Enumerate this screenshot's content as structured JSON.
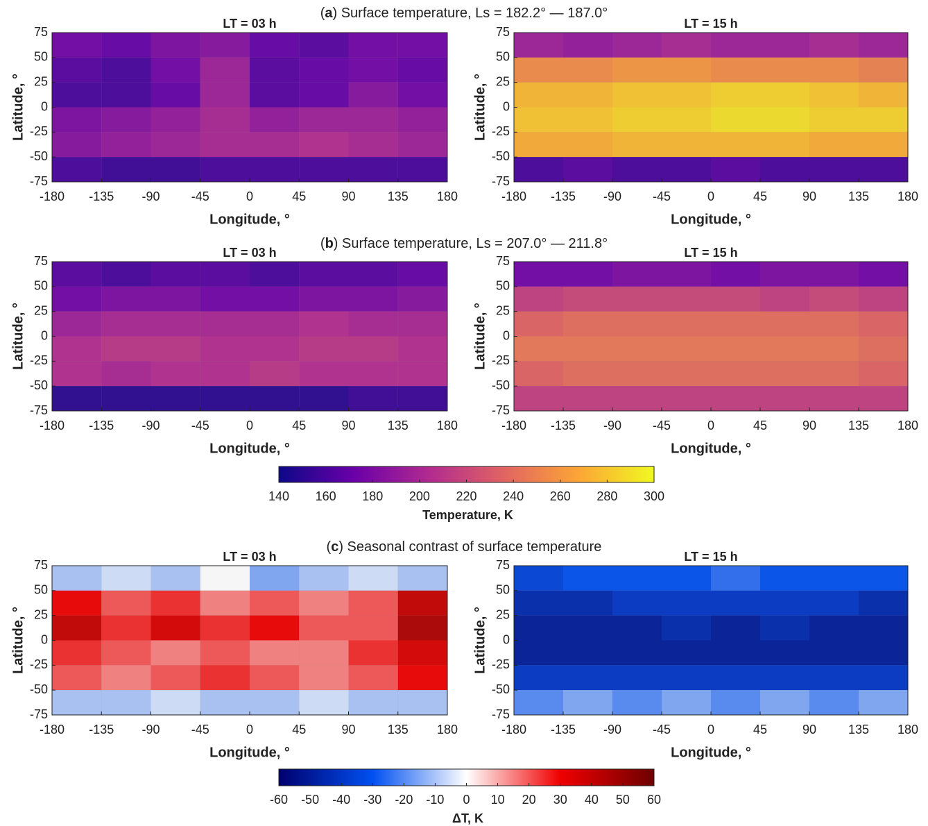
{
  "group_titles": [
    {
      "prefix": "(",
      "letter": "a",
      "rest": ") Surface temperature, Ls = 182.2° — 187.0°"
    },
    {
      "prefix": "(",
      "letter": "b",
      "rest": ") Surface temperature, Ls = 207.0° — 211.8°"
    },
    {
      "prefix": "(",
      "letter": "c",
      "rest": ") Seasonal contrast of surface temperature"
    }
  ],
  "colorbars": [
    {
      "label": "Temperature, K",
      "clim": [
        140,
        300
      ],
      "ticks": [
        140,
        160,
        180,
        200,
        220,
        240,
        260,
        280,
        300
      ],
      "colors": [
        "#0d0887",
        "#6a00a8",
        "#b12a90",
        "#e16462",
        "#fca636",
        "#f0f921"
      ]
    },
    {
      "label": "ΔT, K",
      "clim": [
        -60,
        60
      ],
      "ticks": [
        -60,
        -50,
        -40,
        -30,
        -20,
        -10,
        0,
        10,
        20,
        30,
        40,
        50,
        60
      ],
      "colors": [
        "#00006e",
        "#0050f0",
        "#ffffff",
        "#f00000",
        "#6e0000"
      ]
    }
  ],
  "chart_data": [
    {
      "type": "heatmap",
      "title": "LT = 03 h",
      "xlabel": "Longitude, °",
      "ylabel": "Latitude, °",
      "colorbar": 0,
      "xlim": [
        -180,
        180
      ],
      "ylim": [
        -75,
        75
      ],
      "xticks": [
        -180,
        -135,
        -90,
        -45,
        0,
        45,
        90,
        135,
        180
      ],
      "yticks": [
        75,
        50,
        25,
        0,
        -25,
        -50,
        -75
      ],
      "xbins": [
        -180,
        -135,
        -90,
        -45,
        0,
        45,
        90,
        135,
        180
      ],
      "ybins": [
        75,
        50,
        25,
        0,
        -25,
        -50,
        -75
      ],
      "z": [
        [
          175,
          170,
          180,
          185,
          170,
          165,
          175,
          175
        ],
        [
          165,
          160,
          175,
          195,
          165,
          170,
          175,
          170
        ],
        [
          160,
          160,
          170,
          195,
          165,
          170,
          185,
          175
        ],
        [
          180,
          185,
          190,
          200,
          190,
          195,
          195,
          190
        ],
        [
          185,
          190,
          195,
          200,
          200,
          205,
          200,
          195
        ],
        [
          160,
          155,
          155,
          160,
          160,
          160,
          160,
          160
        ]
      ]
    },
    {
      "type": "heatmap",
      "title": "LT = 15 h",
      "xlabel": "Longitude, °",
      "ylabel": "Latitude, °",
      "colorbar": 0,
      "xlim": [
        -180,
        180
      ],
      "ylim": [
        -75,
        75
      ],
      "xticks": [
        -180,
        -135,
        -90,
        -45,
        0,
        45,
        90,
        135,
        180
      ],
      "yticks": [
        75,
        50,
        25,
        0,
        -25,
        -50,
        -75
      ],
      "xbins": [
        -180,
        -135,
        -90,
        -45,
        0,
        45,
        90,
        135,
        180
      ],
      "ybins": [
        75,
        50,
        25,
        0,
        -25,
        -50,
        -75
      ],
      "z": [
        [
          195,
          190,
          195,
          200,
          195,
          195,
          200,
          195
        ],
        [
          255,
          255,
          260,
          260,
          255,
          255,
          255,
          250
        ],
        [
          275,
          275,
          280,
          280,
          285,
          285,
          280,
          275
        ],
        [
          280,
          280,
          285,
          285,
          290,
          290,
          285,
          285
        ],
        [
          270,
          270,
          275,
          275,
          275,
          275,
          270,
          270
        ],
        [
          160,
          165,
          160,
          160,
          165,
          160,
          160,
          160
        ]
      ]
    },
    {
      "type": "heatmap",
      "title": "LT = 03 h",
      "xlabel": "Longitude, °",
      "ylabel": "Latitude, °",
      "colorbar": 0,
      "xlim": [
        -180,
        180
      ],
      "ylim": [
        -75,
        75
      ],
      "xticks": [
        -180,
        -135,
        -90,
        -45,
        0,
        45,
        90,
        135,
        180
      ],
      "yticks": [
        75,
        50,
        25,
        0,
        -25,
        -50,
        -75
      ],
      "xbins": [
        -180,
        -135,
        -90,
        -45,
        0,
        45,
        90,
        135,
        180
      ],
      "ybins": [
        75,
        50,
        25,
        0,
        -25,
        -50,
        -75
      ],
      "z": [
        [
          165,
          160,
          165,
          165,
          160,
          165,
          165,
          170
        ],
        [
          175,
          180,
          180,
          175,
          175,
          180,
          180,
          185
        ],
        [
          195,
          200,
          200,
          200,
          200,
          205,
          200,
          200
        ],
        [
          205,
          210,
          210,
          205,
          205,
          210,
          210,
          205
        ],
        [
          205,
          200,
          205,
          205,
          210,
          205,
          205,
          205
        ],
        [
          150,
          150,
          150,
          150,
          150,
          150,
          155,
          155
        ]
      ]
    },
    {
      "type": "heatmap",
      "title": "LT = 15 h",
      "xlabel": "Longitude, °",
      "ylabel": "Latitude, °",
      "colorbar": 0,
      "xlim": [
        -180,
        180
      ],
      "ylim": [
        -75,
        75
      ],
      "xticks": [
        -180,
        -135,
        -90,
        -45,
        0,
        45,
        90,
        135,
        180
      ],
      "yticks": [
        75,
        50,
        25,
        0,
        -25,
        -50,
        -75
      ],
      "xbins": [
        -180,
        -135,
        -90,
        -45,
        0,
        45,
        90,
        135,
        180
      ],
      "ybins": [
        75,
        50,
        25,
        0,
        -25,
        -50,
        -75
      ],
      "z": [
        [
          175,
          175,
          180,
          180,
          175,
          180,
          180,
          175
        ],
        [
          215,
          220,
          220,
          220,
          220,
          215,
          220,
          215
        ],
        [
          235,
          240,
          240,
          240,
          240,
          240,
          240,
          235
        ],
        [
          245,
          245,
          245,
          245,
          245,
          245,
          245,
          240
        ],
        [
          235,
          240,
          240,
          240,
          240,
          240,
          240,
          235
        ],
        [
          215,
          215,
          215,
          215,
          215,
          215,
          215,
          215
        ]
      ]
    },
    {
      "type": "heatmap",
      "title": "LT = 03 h",
      "xlabel": "Longitude, °",
      "ylabel": "Latitude, °",
      "colorbar": 1,
      "xlim": [
        -180,
        180
      ],
      "ylim": [
        -75,
        75
      ],
      "xticks": [
        -180,
        -135,
        -90,
        -45,
        0,
        45,
        90,
        135,
        180
      ],
      "yticks": [
        75,
        50,
        25,
        0,
        -25,
        -50,
        -75
      ],
      "xbins": [
        -180,
        -135,
        -90,
        -45,
        0,
        45,
        90,
        135,
        180
      ],
      "ybins": [
        75,
        50,
        25,
        0,
        -25,
        -50,
        -75
      ],
      "z": [
        [
          -10,
          -5,
          -10,
          0,
          -15,
          -10,
          -5,
          -10
        ],
        [
          30,
          20,
          25,
          15,
          20,
          15,
          20,
          40
        ],
        [
          40,
          25,
          35,
          25,
          30,
          20,
          20,
          45
        ],
        [
          25,
          20,
          15,
          20,
          15,
          15,
          25,
          35
        ],
        [
          20,
          15,
          20,
          25,
          20,
          15,
          20,
          30
        ],
        [
          -10,
          -10,
          -5,
          -10,
          -10,
          -5,
          -10,
          -10
        ]
      ]
    },
    {
      "type": "heatmap",
      "title": "LT = 15 h",
      "xlabel": "Longitude, °",
      "ylabel": "Latitude, °",
      "colorbar": 1,
      "xlim": [
        -180,
        180
      ],
      "ylim": [
        -75,
        75
      ],
      "xticks": [
        -180,
        -135,
        -90,
        -45,
        0,
        45,
        90,
        135,
        180
      ],
      "yticks": [
        75,
        50,
        25,
        0,
        -25,
        -50,
        -75
      ],
      "xbins": [
        -180,
        -135,
        -90,
        -45,
        0,
        45,
        90,
        135,
        180
      ],
      "ybins": [
        75,
        50,
        25,
        0,
        -25,
        -50,
        -75
      ],
      "z": [
        [
          -35,
          -30,
          -30,
          -30,
          -25,
          -30,
          -30,
          -30
        ],
        [
          -45,
          -45,
          -40,
          -40,
          -40,
          -40,
          -40,
          -45
        ],
        [
          -50,
          -50,
          -50,
          -45,
          -50,
          -45,
          -50,
          -50
        ],
        [
          -50,
          -50,
          -50,
          -50,
          -50,
          -50,
          -50,
          -50
        ],
        [
          -40,
          -40,
          -40,
          -40,
          -40,
          -40,
          -40,
          -40
        ],
        [
          -20,
          -15,
          -20,
          -15,
          -20,
          -15,
          -20,
          -15
        ]
      ]
    }
  ]
}
